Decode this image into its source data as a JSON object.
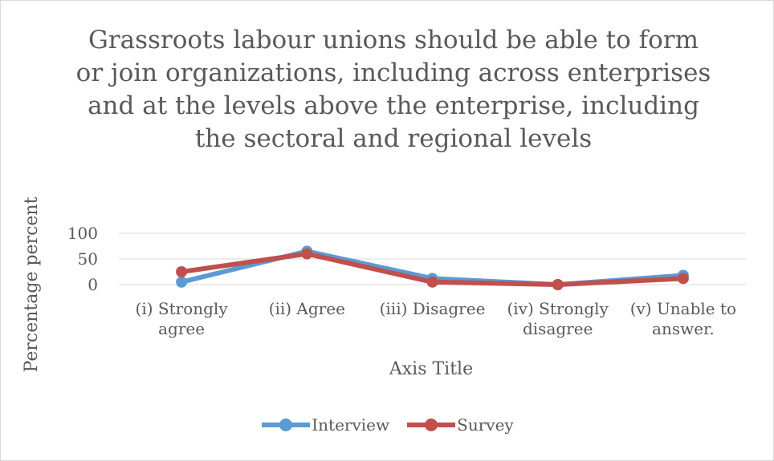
{
  "chart_data": {
    "type": "line",
    "title": "Grassroots labour unions should be able to form or join organizations, including across enterprises and at the levels above the enterprise, including the sectoral and regional levels",
    "xlabel": "Axis Title",
    "ylabel": "Percentage  percent",
    "ylim": [
      0,
      100
    ],
    "yticks": [
      "0",
      "50",
      "100"
    ],
    "ytick_values": [
      0,
      50,
      100
    ],
    "grid": true,
    "legend_position": "bottom",
    "categories": [
      [
        "(i) Strongly",
        "agree"
      ],
      [
        "(ii) Agree"
      ],
      [
        "(iii) Disagree"
      ],
      [
        "(iv) Strongly",
        "disagree"
      ],
      [
        "(v) Unable to",
        "answer."
      ]
    ],
    "series": [
      {
        "name": "Interview",
        "color": "#5b9bd5",
        "values": [
          5,
          65,
          12,
          0,
          18
        ]
      },
      {
        "name": "Survey",
        "color": "#c0504d",
        "values": [
          25,
          60,
          5,
          0,
          12
        ]
      }
    ]
  }
}
